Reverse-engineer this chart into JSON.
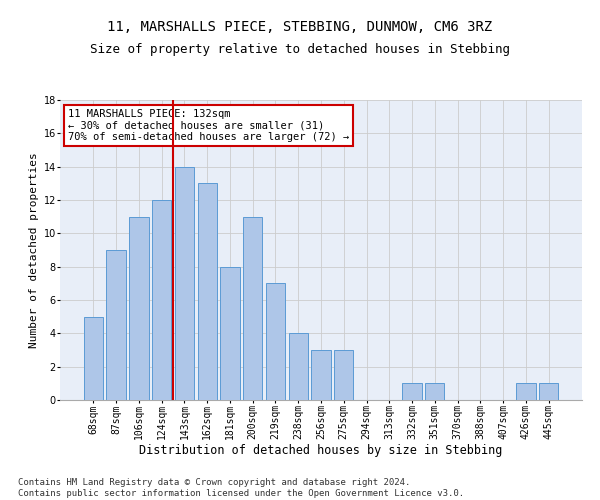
{
  "title": "11, MARSHALLS PIECE, STEBBING, DUNMOW, CM6 3RZ",
  "subtitle": "Size of property relative to detached houses in Stebbing",
  "xlabel": "Distribution of detached houses by size in Stebbing",
  "ylabel": "Number of detached properties",
  "categories": [
    "68sqm",
    "87sqm",
    "106sqm",
    "124sqm",
    "143sqm",
    "162sqm",
    "181sqm",
    "200sqm",
    "219sqm",
    "238sqm",
    "256sqm",
    "275sqm",
    "294sqm",
    "313sqm",
    "332sqm",
    "351sqm",
    "370sqm",
    "388sqm",
    "407sqm",
    "426sqm",
    "445sqm"
  ],
  "values": [
    5,
    9,
    11,
    12,
    14,
    13,
    8,
    11,
    7,
    4,
    3,
    3,
    0,
    0,
    1,
    1,
    0,
    0,
    0,
    1,
    1
  ],
  "bar_color": "#aec6e8",
  "bar_edge_color": "#5b9bd5",
  "vline_x": 3.5,
  "vline_color": "#cc0000",
  "annotation_line1": "11 MARSHALLS PIECE: 132sqm",
  "annotation_line2": "← 30% of detached houses are smaller (31)",
  "annotation_line3": "70% of semi-detached houses are larger (72) →",
  "annotation_box_color": "#cc0000",
  "ylim": [
    0,
    18
  ],
  "yticks": [
    0,
    2,
    4,
    6,
    8,
    10,
    12,
    14,
    16,
    18
  ],
  "grid_color": "#cccccc",
  "background_color": "#e8eef8",
  "footer_line1": "Contains HM Land Registry data © Crown copyright and database right 2024.",
  "footer_line2": "Contains public sector information licensed under the Open Government Licence v3.0.",
  "title_fontsize": 10,
  "subtitle_fontsize": 9,
  "xlabel_fontsize": 8.5,
  "ylabel_fontsize": 8,
  "tick_fontsize": 7,
  "annotation_fontsize": 7.5,
  "footer_fontsize": 6.5
}
